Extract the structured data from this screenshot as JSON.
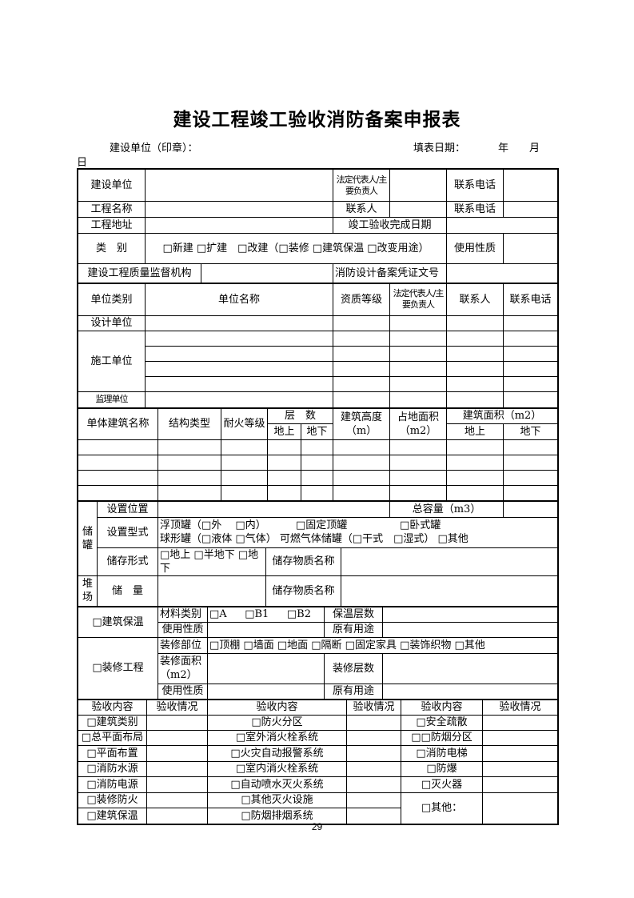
{
  "title": "建设工程竣工验收消防备案申报表",
  "header": {
    "unit_label": "建设单位（印章）：",
    "date_label": "填表日期：",
    "year": "年",
    "month": "月",
    "day": "日"
  },
  "basic": {
    "build_unit": "建设单位",
    "legal_rep": "法定代表人/主要负责人",
    "phone": "联系电话",
    "project_name": "工程名称",
    "contact": "联系人",
    "project_address": "工程地址",
    "completion_date": "竣工验收完成日期",
    "category": "类　别",
    "category_options": "□新建 □扩建　□改建（□装修 □建筑保温 □改变用途）",
    "use_nature": "使用性质",
    "supervision": "建设工程质量监督机构",
    "design_record_no": "消防设计备案凭证文号"
  },
  "units": {
    "headers": [
      "单位类别",
      "单位名称",
      "资质等级",
      "法定代表人/主要负责人",
      "联系人",
      "联系电话"
    ],
    "design": "设计单位",
    "construction": "施工单位",
    "supervisor": "监理单位"
  },
  "buildings": {
    "name": "单体建筑名称",
    "structure": "结构类型",
    "fire_rating": "耐火等级",
    "floors": "层　数",
    "above": "地上",
    "below": "地下",
    "height": "建筑高度（m）",
    "footprint": "占地面积（m2）",
    "area": "建筑面积（m2）"
  },
  "storage": {
    "tank": "储罐",
    "location": "设置位置",
    "capacity": "总容量（m3）",
    "type": "设置型式",
    "type_line1": [
      "浮顶罐（□外　 □内）",
      "□固定顶罐",
      "□卧式罐"
    ],
    "type_line2": "球形罐（□液体 □气体）  可燃气体储罐（□干式　□湿式）  □其他",
    "form": "储存形式",
    "form_options": "□地上 □半地下 □地下",
    "substance": "储存物质名称",
    "yard": "堆场",
    "amount": "储　量"
  },
  "insulation": {
    "label": "□建筑保温",
    "material": "材料类别",
    "options": [
      "□A",
      "□B1",
      "□B2"
    ],
    "layers": "保温层数",
    "use": "使用性质",
    "orig_use": "原有用途"
  },
  "decoration": {
    "label": "□装修工程",
    "parts": "装修部位",
    "parts_options": "□顶棚 □墙面 □地面 □隔断 □固定家具 □装饰织物 □其他",
    "area": "装修面积（m2）",
    "layers": "装修层数",
    "use": "使用性质",
    "orig_use": "原有用途"
  },
  "acceptance": {
    "content": "验收内容",
    "status": "验收情况",
    "col1": [
      "□建筑类别",
      "□总平面布局",
      "□平面布置",
      "□消防水源",
      "□消防电源",
      "□装修防火",
      "□建筑保温"
    ],
    "col2": [
      "□防火分区",
      "□室外消火栓系统",
      "□火灾自动报警系统",
      "□室内消火栓系统",
      "□自动喷水灭火系统",
      "□其他灭火设施",
      "□防烟排烟系统"
    ],
    "col3": [
      "□安全疏散",
      "□□防烟分区",
      "□消防电梯",
      "□防爆",
      "□灭火器",
      "□其他："
    ]
  },
  "page_number": "29"
}
